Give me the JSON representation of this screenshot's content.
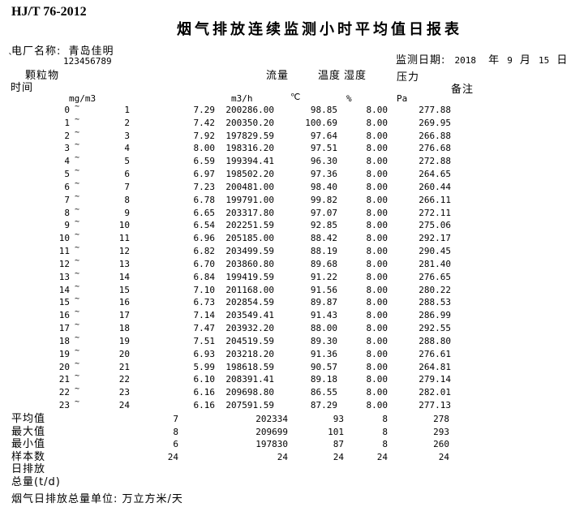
{
  "document": {
    "standard_code": "HJ/T 76-2012",
    "title": "烟气排放连续监测小时平均值日报表",
    "plant_label": "电厂名称:",
    "plant_name": "青岛佳明",
    "stray_mark": "`",
    "plant_code": "123456789",
    "date": {
      "label": "监测日期:",
      "year": "2018",
      "year_unit": "年",
      "month": "9",
      "month_unit": "月",
      "day": "15",
      "day_unit": "日"
    }
  },
  "columns": {
    "pm_label": "颗粒物",
    "time_label": "时间",
    "pm_unit": "mg/m3",
    "flow_label": "流量",
    "flow_unit": "m3/h",
    "temp_label": "温度",
    "temp_unit": "℃",
    "hum_label": "湿度",
    "hum_unit": "%",
    "pres_label": "压力",
    "pres_unit": "Pa",
    "remark_label": "备注",
    "tilde": "~"
  },
  "rows": [
    {
      "start": "0",
      "end": "1",
      "pm": "7.29",
      "flow": "200286.00",
      "temp": "98.85",
      "hum": "8.00",
      "pres": "277.88"
    },
    {
      "start": "1",
      "end": "2",
      "pm": "7.42",
      "flow": "200350.20",
      "temp": "100.69",
      "hum": "8.00",
      "pres": "269.95"
    },
    {
      "start": "2",
      "end": "3",
      "pm": "7.92",
      "flow": "197829.59",
      "temp": "97.64",
      "hum": "8.00",
      "pres": "266.88"
    },
    {
      "start": "3",
      "end": "4",
      "pm": "8.00",
      "flow": "198316.20",
      "temp": "97.51",
      "hum": "8.00",
      "pres": "276.68"
    },
    {
      "start": "4",
      "end": "5",
      "pm": "6.59",
      "flow": "199394.41",
      "temp": "96.30",
      "hum": "8.00",
      "pres": "272.88"
    },
    {
      "start": "5",
      "end": "6",
      "pm": "6.97",
      "flow": "198502.20",
      "temp": "97.36",
      "hum": "8.00",
      "pres": "264.65"
    },
    {
      "start": "6",
      "end": "7",
      "pm": "7.23",
      "flow": "200481.00",
      "temp": "98.40",
      "hum": "8.00",
      "pres": "260.44"
    },
    {
      "start": "7",
      "end": "8",
      "pm": "6.78",
      "flow": "199791.00",
      "temp": "99.82",
      "hum": "8.00",
      "pres": "266.11"
    },
    {
      "start": "8",
      "end": "9",
      "pm": "6.65",
      "flow": "203317.80",
      "temp": "97.07",
      "hum": "8.00",
      "pres": "272.11"
    },
    {
      "start": "9",
      "end": "10",
      "pm": "6.54",
      "flow": "202251.59",
      "temp": "92.85",
      "hum": "8.00",
      "pres": "275.06"
    },
    {
      "start": "10",
      "end": "11",
      "pm": "6.96",
      "flow": "205185.00",
      "temp": "88.42",
      "hum": "8.00",
      "pres": "292.17"
    },
    {
      "start": "11",
      "end": "12",
      "pm": "6.82",
      "flow": "203499.59",
      "temp": "88.19",
      "hum": "8.00",
      "pres": "290.45"
    },
    {
      "start": "12",
      "end": "13",
      "pm": "6.70",
      "flow": "203860.80",
      "temp": "89.68",
      "hum": "8.00",
      "pres": "281.40"
    },
    {
      "start": "13",
      "end": "14",
      "pm": "6.84",
      "flow": "199419.59",
      "temp": "91.22",
      "hum": "8.00",
      "pres": "276.65"
    },
    {
      "start": "14",
      "end": "15",
      "pm": "7.10",
      "flow": "201168.00",
      "temp": "91.56",
      "hum": "8.00",
      "pres": "280.22"
    },
    {
      "start": "15",
      "end": "16",
      "pm": "6.73",
      "flow": "202854.59",
      "temp": "89.87",
      "hum": "8.00",
      "pres": "288.53"
    },
    {
      "start": "16",
      "end": "17",
      "pm": "7.14",
      "flow": "203549.41",
      "temp": "91.43",
      "hum": "8.00",
      "pres": "286.99"
    },
    {
      "start": "17",
      "end": "18",
      "pm": "7.47",
      "flow": "203932.20",
      "temp": "88.00",
      "hum": "8.00",
      "pres": "292.55"
    },
    {
      "start": "18",
      "end": "19",
      "pm": "7.51",
      "flow": "204519.59",
      "temp": "89.30",
      "hum": "8.00",
      "pres": "288.80"
    },
    {
      "start": "19",
      "end": "20",
      "pm": "6.93",
      "flow": "203218.20",
      "temp": "91.36",
      "hum": "8.00",
      "pres": "276.61"
    },
    {
      "start": "20",
      "end": "21",
      "pm": "5.99",
      "flow": "198618.59",
      "temp": "90.57",
      "hum": "8.00",
      "pres": "264.81"
    },
    {
      "start": "21",
      "end": "22",
      "pm": "6.10",
      "flow": "208391.41",
      "temp": "89.18",
      "hum": "8.00",
      "pres": "279.14"
    },
    {
      "start": "22",
      "end": "23",
      "pm": "6.16",
      "flow": "209698.80",
      "temp": "86.55",
      "hum": "8.00",
      "pres": "282.01"
    },
    {
      "start": "23",
      "end": "24",
      "pm": "6.16",
      "flow": "207591.59",
      "temp": "87.29",
      "hum": "8.00",
      "pres": "277.13"
    }
  ],
  "summary": [
    {
      "label": "平均值",
      "pm": "7",
      "flow": "202334",
      "temp": "93",
      "hum": "8",
      "pres": "278"
    },
    {
      "label": "最大值",
      "pm": "8",
      "flow": "209699",
      "temp": "101",
      "hum": "8",
      "pres": "293"
    },
    {
      "label": "最小值",
      "pm": "6",
      "flow": "197830",
      "temp": "87",
      "hum": "8",
      "pres": "260"
    },
    {
      "label": "样本数",
      "pm": "24",
      "flow": "24",
      "temp": "24",
      "hum": "24",
      "pres": "24"
    },
    {
      "label": "日排放",
      "pm": "",
      "flow": "",
      "temp": "",
      "hum": "",
      "pres": ""
    },
    {
      "label": "总量(t/d)",
      "pm": "",
      "flow": "",
      "temp": "",
      "hum": "",
      "pres": ""
    }
  ],
  "footer": {
    "unit_note": "烟气日排放总量单位: 万立方米/天"
  }
}
